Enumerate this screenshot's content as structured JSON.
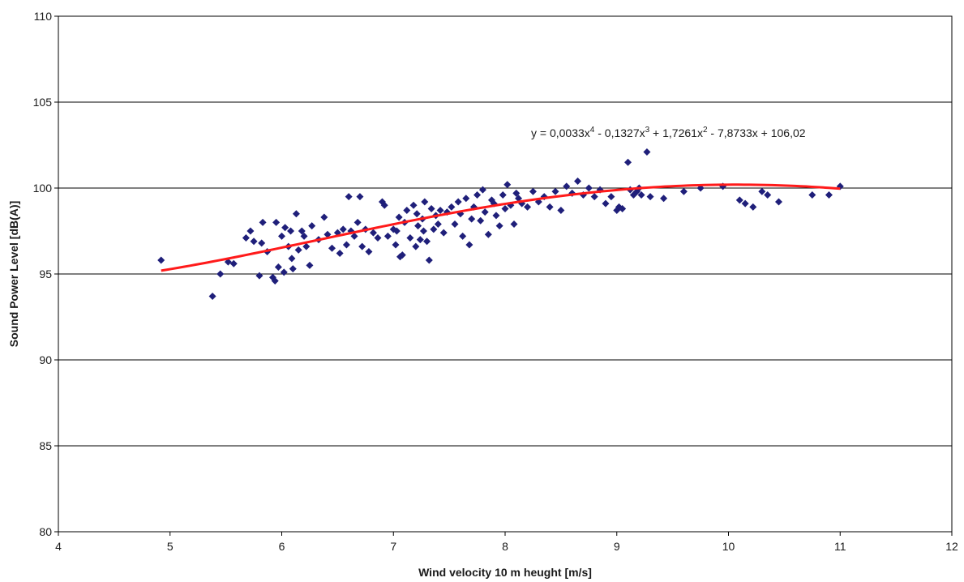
{
  "chart_data": {
    "type": "scatter",
    "title": "",
    "xlabel": "Wind velocity 10 m heught [m/s]",
    "ylabel": "Sound Power Level [dB(A)]",
    "xlim": [
      4,
      12
    ],
    "ylim": [
      80,
      110
    ],
    "xticks": [
      "4",
      "5",
      "6",
      "7",
      "8",
      "9",
      "10",
      "11",
      "12"
    ],
    "yticks": [
      "80",
      "85",
      "90",
      "95",
      "100",
      "105",
      "110"
    ],
    "grid": "horizontal",
    "legend": "none",
    "marker_color": "#1f1f7a",
    "trend_color": "#ff1a1a",
    "trendline": {
      "type": "polynomial",
      "order": 4,
      "coefficients": [
        0.0033,
        -0.1327,
        1.7261,
        -7.8733,
        106.02
      ],
      "x_range": [
        4.92,
        11.0
      ],
      "equation_parts": {
        "p1": "y = 0,0033x",
        "e1": "4",
        "p2": " - 0,1327x",
        "e2": "3",
        "p3": " + 1,7261x",
        "e3": "2",
        "p4": " - 7,8733x + 106,02"
      }
    },
    "points": [
      [
        4.92,
        95.8
      ],
      [
        5.38,
        93.7
      ],
      [
        5.45,
        95.0
      ],
      [
        5.52,
        95.7
      ],
      [
        5.57,
        95.6
      ],
      [
        5.68,
        97.1
      ],
      [
        5.72,
        97.5
      ],
      [
        5.75,
        96.9
      ],
      [
        5.8,
        94.9
      ],
      [
        5.82,
        96.8
      ],
      [
        5.83,
        98.0
      ],
      [
        5.87,
        96.3
      ],
      [
        5.92,
        94.8
      ],
      [
        5.94,
        94.6
      ],
      [
        5.95,
        98.0
      ],
      [
        5.97,
        95.4
      ],
      [
        6.0,
        97.2
      ],
      [
        6.02,
        95.1
      ],
      [
        6.03,
        97.7
      ],
      [
        6.06,
        96.6
      ],
      [
        6.08,
        97.5
      ],
      [
        6.09,
        95.9
      ],
      [
        6.1,
        95.3
      ],
      [
        6.13,
        98.5
      ],
      [
        6.15,
        96.4
      ],
      [
        6.18,
        97.5
      ],
      [
        6.2,
        97.2
      ],
      [
        6.22,
        96.6
      ],
      [
        6.25,
        95.5
      ],
      [
        6.27,
        97.8
      ],
      [
        6.33,
        97.0
      ],
      [
        6.38,
        98.3
      ],
      [
        6.41,
        97.3
      ],
      [
        6.45,
        96.5
      ],
      [
        6.5,
        97.4
      ],
      [
        6.52,
        96.2
      ],
      [
        6.55,
        97.6
      ],
      [
        6.58,
        96.7
      ],
      [
        6.6,
        99.5
      ],
      [
        6.62,
        97.5
      ],
      [
        6.65,
        97.2
      ],
      [
        6.68,
        98.0
      ],
      [
        6.7,
        99.5
      ],
      [
        6.72,
        96.6
      ],
      [
        6.75,
        97.6
      ],
      [
        6.78,
        96.3
      ],
      [
        6.82,
        97.4
      ],
      [
        6.86,
        97.1
      ],
      [
        6.9,
        99.2
      ],
      [
        6.92,
        99.0
      ],
      [
        6.95,
        97.2
      ],
      [
        7.0,
        97.6
      ],
      [
        7.02,
        96.7
      ],
      [
        7.03,
        97.5
      ],
      [
        7.05,
        98.3
      ],
      [
        7.06,
        96.0
      ],
      [
        7.08,
        96.1
      ],
      [
        7.1,
        98.0
      ],
      [
        7.12,
        98.7
      ],
      [
        7.15,
        97.1
      ],
      [
        7.18,
        99.0
      ],
      [
        7.2,
        96.6
      ],
      [
        7.21,
        98.5
      ],
      [
        7.22,
        97.8
      ],
      [
        7.24,
        97.0
      ],
      [
        7.26,
        98.2
      ],
      [
        7.27,
        97.5
      ],
      [
        7.28,
        99.2
      ],
      [
        7.3,
        96.9
      ],
      [
        7.32,
        95.8
      ],
      [
        7.34,
        98.8
      ],
      [
        7.36,
        97.6
      ],
      [
        7.38,
        98.4
      ],
      [
        7.4,
        97.9
      ],
      [
        7.42,
        98.7
      ],
      [
        7.45,
        97.4
      ],
      [
        7.48,
        98.6
      ],
      [
        7.52,
        98.9
      ],
      [
        7.55,
        97.9
      ],
      [
        7.58,
        99.2
      ],
      [
        7.6,
        98.5
      ],
      [
        7.62,
        97.2
      ],
      [
        7.65,
        99.4
      ],
      [
        7.68,
        96.7
      ],
      [
        7.7,
        98.2
      ],
      [
        7.72,
        98.9
      ],
      [
        7.75,
        99.6
      ],
      [
        7.78,
        98.1
      ],
      [
        7.8,
        99.9
      ],
      [
        7.82,
        98.6
      ],
      [
        7.85,
        97.3
      ],
      [
        7.88,
        99.3
      ],
      [
        7.9,
        99.1
      ],
      [
        7.92,
        98.4
      ],
      [
        7.95,
        97.8
      ],
      [
        7.98,
        99.6
      ],
      [
        8.0,
        98.8
      ],
      [
        8.02,
        100.2
      ],
      [
        8.05,
        99.0
      ],
      [
        8.08,
        97.9
      ],
      [
        8.1,
        99.7
      ],
      [
        8.12,
        99.4
      ],
      [
        8.15,
        99.1
      ],
      [
        8.2,
        98.9
      ],
      [
        8.25,
        99.8
      ],
      [
        8.3,
        99.2
      ],
      [
        8.35,
        99.5
      ],
      [
        8.4,
        98.9
      ],
      [
        8.45,
        99.8
      ],
      [
        8.5,
        98.7
      ],
      [
        8.55,
        100.1
      ],
      [
        8.6,
        99.7
      ],
      [
        8.65,
        100.4
      ],
      [
        8.7,
        99.6
      ],
      [
        8.75,
        100.0
      ],
      [
        8.8,
        99.5
      ],
      [
        8.85,
        99.9
      ],
      [
        8.9,
        99.1
      ],
      [
        8.95,
        99.5
      ],
      [
        9.0,
        98.7
      ],
      [
        9.02,
        98.9
      ],
      [
        9.05,
        98.8
      ],
      [
        9.1,
        101.5
      ],
      [
        9.12,
        99.9
      ],
      [
        9.15,
        99.6
      ],
      [
        9.18,
        99.8
      ],
      [
        9.2,
        100.0
      ],
      [
        9.22,
        99.6
      ],
      [
        9.27,
        102.1
      ],
      [
        9.3,
        99.5
      ],
      [
        9.42,
        99.4
      ],
      [
        9.6,
        99.8
      ],
      [
        9.75,
        100.0
      ],
      [
        9.95,
        100.1
      ],
      [
        10.1,
        99.3
      ],
      [
        10.15,
        99.1
      ],
      [
        10.22,
        98.9
      ],
      [
        10.3,
        99.8
      ],
      [
        10.35,
        99.6
      ],
      [
        10.45,
        99.2
      ],
      [
        10.75,
        99.6
      ],
      [
        10.9,
        99.6
      ],
      [
        11.0,
        100.1
      ]
    ]
  }
}
